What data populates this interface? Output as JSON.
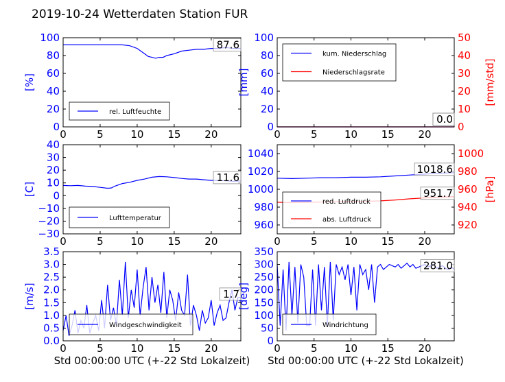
{
  "title": "2019-10-24 Wetterdaten Station FUR",
  "colors": {
    "primary": "#0000ff",
    "secondary": "#ff0000",
    "axis": "#000000"
  },
  "chart_data": [
    {
      "type": "line",
      "panel": "top-left",
      "ylabel": "[%]",
      "xlim": [
        0,
        24
      ],
      "ylim": [
        0,
        100
      ],
      "xticks": [
        "0",
        "5",
        "10",
        "15",
        "20"
      ],
      "yticks": [
        "0",
        "20",
        "40",
        "60",
        "80",
        "100"
      ],
      "legend_position": "lower-left",
      "last_value": "87.6",
      "series": [
        {
          "name": "rel. Luftfeuchte",
          "color": "#0000ff",
          "x": [
            0,
            2,
            4,
            6,
            8,
            9,
            10,
            11,
            11.5,
            12,
            12.5,
            13,
            13.5,
            14,
            15,
            16,
            17,
            18,
            19,
            20,
            21,
            22,
            23,
            24
          ],
          "values": [
            92,
            92,
            92,
            92,
            92,
            91,
            88,
            82,
            79,
            78,
            77,
            78,
            78,
            80,
            82,
            85,
            86,
            87,
            87,
            88,
            88,
            89,
            88,
            88
          ]
        }
      ]
    },
    {
      "type": "line",
      "panel": "top-right",
      "ylabel": "[mm]",
      "ylabel_right": "[mm/std]",
      "xlim": [
        0,
        24
      ],
      "ylim": [
        0,
        100
      ],
      "ylim_right": [
        0,
        50
      ],
      "xticks": [
        "0",
        "5",
        "10",
        "15",
        "20"
      ],
      "yticks": [
        "0",
        "20",
        "40",
        "60",
        "80",
        "100"
      ],
      "yticks_right": [
        "0",
        "10",
        "20",
        "30",
        "40",
        "50"
      ],
      "legend_position": "upper-left",
      "last_value": "0.0",
      "last_value_right": "0.0",
      "series": [
        {
          "name": "kum. Niederschlag",
          "color": "#0000ff",
          "axis": "left",
          "x": [
            0,
            24
          ],
          "values": [
            0,
            0
          ]
        },
        {
          "name": "Niederschlagsrate",
          "color": "#ff0000",
          "axis": "right",
          "x": [
            0,
            24
          ],
          "values": [
            0,
            0
          ]
        }
      ]
    },
    {
      "type": "line",
      "panel": "middle-left",
      "ylabel": "[C]",
      "xlim": [
        0,
        24
      ],
      "ylim": [
        -30,
        40
      ],
      "xticks": [
        "0",
        "5",
        "10",
        "15",
        "20"
      ],
      "yticks": [
        "−30",
        "−20",
        "−10",
        "0",
        "10",
        "20",
        "30",
        "40"
      ],
      "legend_position": "lower-left",
      "last_value": "11.6",
      "series": [
        {
          "name": "Lufttemperatur",
          "color": "#0000ff",
          "x": [
            0,
            1,
            2,
            3,
            4,
            5,
            6,
            6.5,
            7,
            8,
            9,
            10,
            11,
            12,
            13,
            14,
            15,
            16,
            17,
            18,
            19,
            20,
            21,
            22,
            23,
            24
          ],
          "values": [
            8,
            7.8,
            8,
            7.5,
            7.2,
            6.5,
            5.8,
            6,
            7.5,
            9.5,
            10.5,
            12,
            13,
            14.5,
            15,
            14.8,
            14.2,
            13.5,
            13,
            13,
            12.5,
            12,
            12,
            11.6,
            11.3,
            11.5
          ]
        }
      ]
    },
    {
      "type": "line",
      "panel": "middle-right",
      "ylabel_right": "[hPa]",
      "xlim": [
        0,
        24
      ],
      "ylim": [
        950,
        1050
      ],
      "ylim_right": [
        910,
        1010
      ],
      "xticks": [
        "0",
        "5",
        "10",
        "15",
        "20"
      ],
      "yticks": [
        "960",
        "980",
        "1000",
        "1020",
        "1040"
      ],
      "yticks_right": [
        "920",
        "940",
        "960",
        "980",
        "1000"
      ],
      "legend_position": "lower-left",
      "last_value": "1018.6",
      "last_value_right": "951.7",
      "series": [
        {
          "name": "red. Luftdruck",
          "color": "#0000ff",
          "axis": "left",
          "x": [
            0,
            2,
            4,
            6,
            8,
            10,
            12,
            14,
            16,
            18,
            20,
            22,
            24
          ],
          "values": [
            1012.5,
            1012,
            1012.5,
            1013,
            1013,
            1013.5,
            1013.5,
            1014,
            1015,
            1016,
            1017,
            1018,
            1018.6
          ]
        },
        {
          "name": "abs. Luftdruck",
          "color": "#ff0000",
          "axis": "right",
          "x": [
            0,
            2,
            4,
            6,
            8,
            10,
            12,
            14,
            16,
            18,
            20,
            22,
            24
          ],
          "values": [
            945.5,
            945,
            945.3,
            945.8,
            946,
            946.3,
            946.5,
            947,
            948,
            949.3,
            950.3,
            951.2,
            951.7
          ]
        }
      ]
    },
    {
      "type": "line",
      "panel": "bottom-left",
      "ylabel": "[m/s]",
      "xlabel": "Std 00:00:00 UTC (+-22 Std Lokalzeit)",
      "xlim": [
        0,
        24
      ],
      "ylim": [
        0,
        3.5
      ],
      "xticks": [
        "0",
        "5",
        "10",
        "15",
        "20"
      ],
      "yticks": [
        "0.0",
        "0.5",
        "1.0",
        "1.5",
        "2.0",
        "2.5",
        "3.0",
        "3.5"
      ],
      "legend_position": "lower-left",
      "last_value": "1.7",
      "series": [
        {
          "name": "Windgeschwindigkeit",
          "color": "#0000ff",
          "x": [
            0,
            0.4,
            0.8,
            1.2,
            1.6,
            2,
            2.4,
            2.8,
            3.2,
            3.6,
            4,
            4.4,
            4.8,
            5.2,
            5.6,
            6,
            6.4,
            6.8,
            7.2,
            7.6,
            8,
            8.4,
            8.8,
            9.2,
            9.6,
            10,
            10.4,
            10.8,
            11.2,
            11.6,
            12,
            12.4,
            12.8,
            13.2,
            13.6,
            14,
            14.4,
            14.8,
            15.2,
            15.6,
            16,
            16.4,
            16.8,
            17.2,
            17.6,
            18,
            18.4,
            18.8,
            19.2,
            19.6,
            20,
            20.4,
            20.8,
            21.2,
            21.6,
            22,
            22.4,
            22.8,
            23.2,
            23.6,
            24
          ],
          "values": [
            0.4,
            1.0,
            0.2,
            0.6,
            1.2,
            0.3,
            0.8,
            0.5,
            1.4,
            0.3,
            0.7,
            1.0,
            0.4,
            1.6,
            0.5,
            2.2,
            0.8,
            1.3,
            0.6,
            2.4,
            1.0,
            3.1,
            0.9,
            2.0,
            1.3,
            2.8,
            1.0,
            2.1,
            2.9,
            1.2,
            2.5,
            1.5,
            2.2,
            1.1,
            2.7,
            0.9,
            2.0,
            1.6,
            0.8,
            1.9,
            1.2,
            1.0,
            2.6,
            0.6,
            1.4,
            1.0,
            0.4,
            1.2,
            0.7,
            0.9,
            1.6,
            0.6,
            1.1,
            1.4,
            0.8,
            0.9,
            1.5,
            2.0,
            1.2,
            1.7,
            1.7
          ]
        }
      ]
    },
    {
      "type": "line",
      "panel": "bottom-right",
      "ylabel": "[deg]",
      "xlabel": "Std 00:00:00 UTC (+-22 Std Lokalzeit)",
      "xlim": [
        0,
        24
      ],
      "ylim": [
        0,
        350
      ],
      "xticks": [
        "0",
        "5",
        "10",
        "15",
        "20"
      ],
      "yticks": [
        "0",
        "50",
        "100",
        "150",
        "200",
        "250",
        "300",
        "350"
      ],
      "legend_position": "lower-left",
      "last_value": "281.0",
      "series": [
        {
          "name": "Windrichtung",
          "color": "#0000ff",
          "x": [
            0,
            0.4,
            0.8,
            1.2,
            1.6,
            2,
            2.4,
            2.8,
            3.2,
            3.6,
            4,
            4.4,
            4.8,
            5.2,
            5.6,
            6,
            6.4,
            6.8,
            7.2,
            7.6,
            8,
            8.4,
            8.8,
            9.2,
            9.6,
            10,
            10.4,
            10.8,
            11.2,
            11.6,
            12,
            12.4,
            12.8,
            13.2,
            13.6,
            14,
            14.4,
            14.8,
            15.2,
            15.6,
            16,
            16.4,
            16.8,
            17.2,
            17.6,
            18,
            18.4,
            18.8,
            19.2,
            19.6,
            20,
            20.4,
            20.8,
            21.2,
            21.6,
            22,
            22.4,
            22.8,
            23.2,
            23.6,
            24
          ],
          "values": [
            300,
            60,
            280,
            40,
            310,
            100,
            290,
            70,
            300,
            250,
            60,
            60,
            280,
            60,
            300,
            120,
            290,
            60,
            310,
            80,
            300,
            260,
            290,
            240,
            300,
            180,
            290,
            120,
            300,
            260,
            280,
            200,
            300,
            150,
            290,
            300,
            280,
            290,
            300,
            295,
            290,
            300,
            285,
            295,
            305,
            290,
            300,
            285,
            290,
            295,
            300,
            290,
            295,
            300,
            285,
            290,
            295,
            285,
            280,
            290,
            281
          ]
        }
      ]
    }
  ]
}
